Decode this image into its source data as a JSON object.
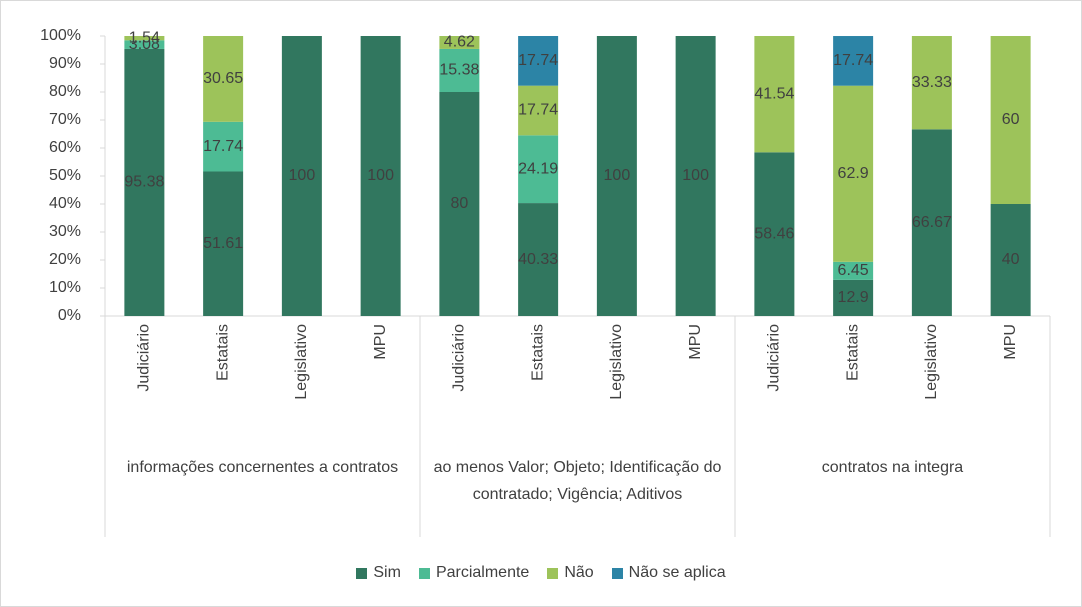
{
  "chart_data": {
    "type": "stacked-bar",
    "categories": [
      "Judiciário",
      "Estatais",
      "Legislativo",
      "MPU",
      "Judiciário",
      "Estatais",
      "Legislativo",
      "MPU",
      "Judiciário",
      "Estatais",
      "Legislativo",
      "MPU"
    ],
    "groups": [
      "informações concernentes a contratos",
      "ao menos Valor; Objeto; Identificação do contratado; Vigência; Aditivos",
      "contratos na integra"
    ],
    "series": [
      {
        "name": "Sim",
        "color": "#31775f",
        "values": [
          95.38,
          51.61,
          100,
          100,
          80,
          40.33,
          100,
          100,
          58.46,
          12.9,
          66.67,
          40
        ]
      },
      {
        "name": "Parcialmente",
        "color": "#4dbb94",
        "values": [
          3.08,
          17.74,
          null,
          null,
          15.38,
          24.19,
          null,
          null,
          null,
          6.45,
          null,
          null
        ]
      },
      {
        "name": "Não",
        "color": "#9dc35a",
        "values": [
          1.54,
          30.65,
          null,
          null,
          4.62,
          17.74,
          null,
          null,
          41.54,
          62.9,
          33.33,
          60
        ]
      },
      {
        "name": "Não se aplica",
        "color": "#2c84a6",
        "values": [
          null,
          null,
          null,
          null,
          null,
          17.74,
          null,
          null,
          null,
          17.74,
          null,
          null
        ]
      }
    ],
    "ylim": [
      0,
      100
    ],
    "yticks": [
      {
        "value": 0,
        "label": "0%"
      },
      {
        "value": 10,
        "label": "10%"
      },
      {
        "value": 20,
        "label": "20%"
      },
      {
        "value": 30,
        "label": "30%"
      },
      {
        "value": 40,
        "label": "40%"
      },
      {
        "value": 50,
        "label": "50%"
      },
      {
        "value": 60,
        "label": "60%"
      },
      {
        "value": 70,
        "label": "70%"
      },
      {
        "value": 80,
        "label": "80%"
      },
      {
        "value": 90,
        "label": "90%"
      },
      {
        "value": 100,
        "label": "100%"
      }
    ],
    "legend": "bottom"
  }
}
